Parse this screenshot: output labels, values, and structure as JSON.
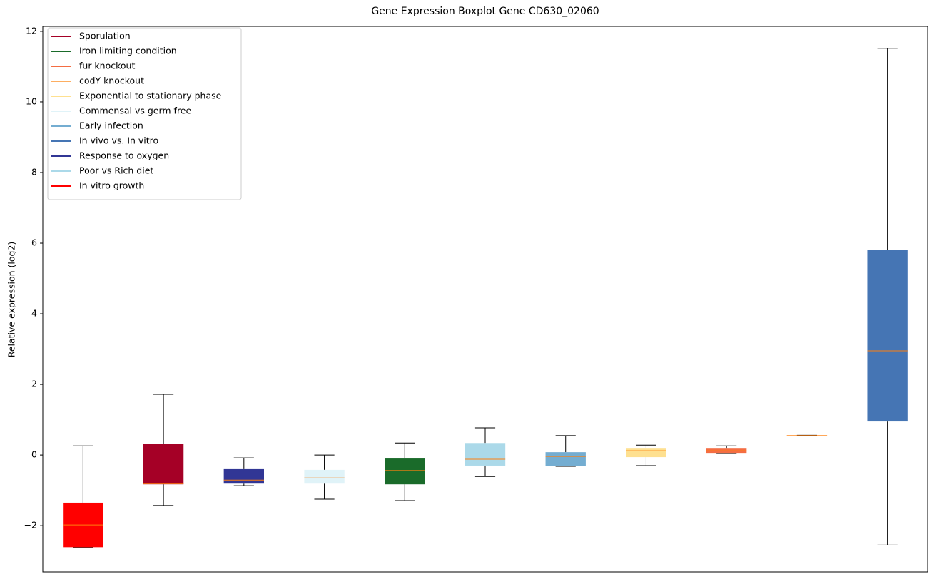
{
  "chart_data": {
    "type": "boxplot",
    "title": "Gene Expression Boxplot Gene CD630_02060",
    "y_label": "Relative expression (log2)",
    "xlim": [
      0.5,
      11.5
    ],
    "ylim": [
      -3.31,
      12.14
    ],
    "yticks": [
      {
        "value": -2,
        "label": "−2"
      },
      0,
      2,
      4,
      6,
      8,
      10,
      12
    ],
    "median_color": "#ff7f0e",
    "whisker_color": "#000000",
    "legend_position": "upper left",
    "series": [
      {
        "name": "Sporulation",
        "color": "#a50026",
        "x": 2,
        "whislo": -1.43,
        "q1": -0.83,
        "med": -0.81,
        "q3": 0.32,
        "whishi": 1.72
      },
      {
        "name": "Iron limiting condition",
        "color": "#1a6b2a",
        "x": 5,
        "whislo": -1.29,
        "q1": -0.83,
        "med": -0.44,
        "q3": -0.1,
        "whishi": 0.34
      },
      {
        "name": "fur knockout",
        "color": "#f46d43",
        "x": 9,
        "whislo": 0.06,
        "q1": 0.06,
        "med": 0.12,
        "q3": 0.2,
        "whishi": 0.26
      },
      {
        "name": "codY knockout",
        "color": "#fdae61",
        "x": 10,
        "whislo": 0.54,
        "q1": 0.54,
        "med": 0.55,
        "q3": 0.56,
        "whishi": 0.56
      },
      {
        "name": "Exponential to stationary phase",
        "color": "#fee090",
        "x": 8,
        "whislo": -0.3,
        "q1": -0.06,
        "med": 0.12,
        "q3": 0.2,
        "whishi": 0.28
      },
      {
        "name": "Commensal vs germ free",
        "color": "#e0f3f8",
        "x": 4,
        "whislo": -1.25,
        "q1": -0.81,
        "med": -0.65,
        "q3": -0.42,
        "whishi": 0
      },
      {
        "name": "Early infection",
        "color": "#74add1",
        "x": 7,
        "whislo": -0.32,
        "q1": -0.32,
        "med": -0.04,
        "q3": 0.08,
        "whishi": 0.55
      },
      {
        "name": "In vivo vs. In vitro",
        "color": "#4575b4",
        "x": 11,
        "whislo": -2.55,
        "q1": 0.95,
        "med": 2.95,
        "q3": 5.8,
        "whishi": 11.52
      },
      {
        "name": "Response to oxygen",
        "color": "#313695",
        "x": 3,
        "whislo": -0.87,
        "q1": -0.81,
        "med": -0.71,
        "q3": -0.4,
        "whishi": -0.08
      },
      {
        "name": "Poor vs Rich diet",
        "color": "#abd9e9",
        "x": 6,
        "whislo": -0.61,
        "q1": -0.3,
        "med": -0.12,
        "q3": 0.34,
        "whishi": 0.77
      },
      {
        "name": "In vitro growth",
        "color": "#ff0000",
        "x": 1,
        "whislo": -2.61,
        "q1": -2.61,
        "med": -1.98,
        "q3": -1.35,
        "whishi": 0.26
      }
    ]
  }
}
